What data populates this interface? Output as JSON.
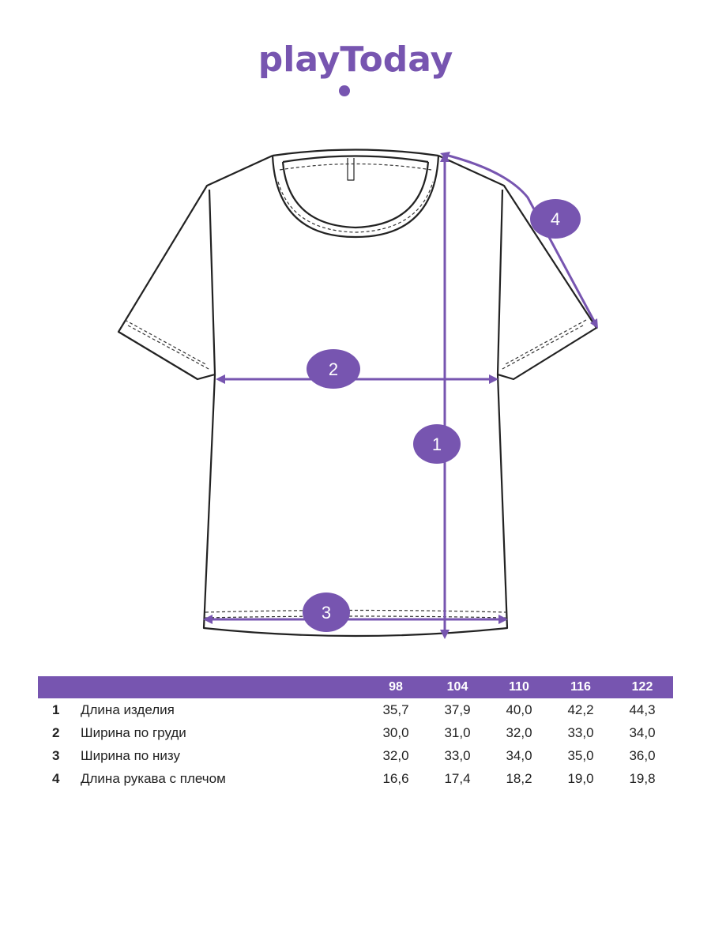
{
  "brand": {
    "logo_text": "playToday",
    "color": "#7755b0"
  },
  "markers": [
    "1",
    "2",
    "3",
    "4"
  ],
  "table": {
    "sizes": [
      "98",
      "104",
      "110",
      "116",
      "122"
    ],
    "rows": [
      {
        "num": "1",
        "label": "Длина изделия",
        "values": [
          "35,7",
          "37,9",
          "40,0",
          "42,2",
          "44,3"
        ]
      },
      {
        "num": "2",
        "label": "Ширина по груди",
        "values": [
          "30,0",
          "31,0",
          "32,0",
          "33,0",
          "34,0"
        ]
      },
      {
        "num": "3",
        "label": "Ширина по низу",
        "values": [
          "32,0",
          "33,0",
          "34,0",
          "35,0",
          "36,0"
        ]
      },
      {
        "num": "4",
        "label": "Длина рукава с плечом",
        "values": [
          "16,6",
          "17,4",
          "18,2",
          "19,0",
          "19,8"
        ]
      }
    ]
  }
}
